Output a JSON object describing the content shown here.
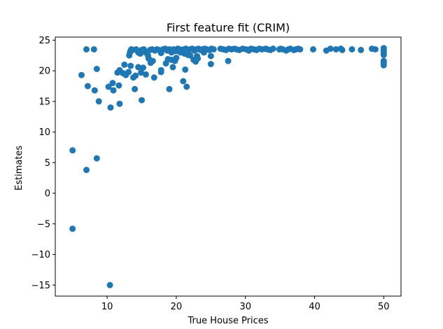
{
  "chart_data": {
    "type": "scatter",
    "title": "First feature fit (CRIM)",
    "xlabel": "True House Prices",
    "ylabel": "Estimates",
    "xlim": [
      2.5,
      52.5
    ],
    "ylim": [
      -16.8,
      25.5
    ],
    "xticks": [
      10,
      20,
      30,
      40,
      50
    ],
    "yticks": [
      -15,
      -10,
      -5,
      0,
      5,
      10,
      15,
      20,
      25
    ],
    "grid": false,
    "marker_color": "#1f77b4",
    "series": [
      {
        "name": "estimates",
        "points": [
          [
            5.0,
            7.0
          ],
          [
            5.0,
            -5.8
          ],
          [
            7.0,
            3.8
          ],
          [
            8.5,
            5.7
          ],
          [
            10.4,
            -15.0
          ],
          [
            6.3,
            19.3
          ],
          [
            7.2,
            17.5
          ],
          [
            8.2,
            16.8
          ],
          [
            8.8,
            15.0
          ],
          [
            8.5,
            20.3
          ],
          [
            7.0,
            23.5
          ],
          [
            8.1,
            23.5
          ],
          [
            10.2,
            17.4
          ],
          [
            10.5,
            14.0
          ],
          [
            10.8,
            18.0
          ],
          [
            10.9,
            16.8
          ],
          [
            11.8,
            14.6
          ],
          [
            11.7,
            17.6
          ],
          [
            11.5,
            19.7
          ],
          [
            11.8,
            20.1
          ],
          [
            12.3,
            19.6
          ],
          [
            12.5,
            21.0
          ],
          [
            12.7,
            19.3
          ],
          [
            13.1,
            19.8
          ],
          [
            13.4,
            20.8
          ],
          [
            13.8,
            18.9
          ],
          [
            14.0,
            17.0
          ],
          [
            14.1,
            19.2
          ],
          [
            14.5,
            20.6
          ],
          [
            14.9,
            19.7
          ],
          [
            15.0,
            15.2
          ],
          [
            15.2,
            20.5
          ],
          [
            15.6,
            19.4
          ],
          [
            16.0,
            22.0
          ],
          [
            16.3,
            21.3
          ],
          [
            16.6,
            21.6
          ],
          [
            16.8,
            18.9
          ],
          [
            17.8,
            19.8
          ],
          [
            17.8,
            20.1
          ],
          [
            18.5,
            21.2
          ],
          [
            18.8,
            21.9
          ],
          [
            19.0,
            17.0
          ],
          [
            19.3,
            21.8
          ],
          [
            19.5,
            20.6
          ],
          [
            19.8,
            21.6
          ],
          [
            20.0,
            22.1
          ],
          [
            20.6,
            23.0
          ],
          [
            21.0,
            18.3
          ],
          [
            21.3,
            20.2
          ],
          [
            21.5,
            17.4
          ],
          [
            21.2,
            22.8
          ],
          [
            21.7,
            22.6
          ],
          [
            22.0,
            22.5
          ],
          [
            22.5,
            21.8
          ],
          [
            22.8,
            21.5
          ],
          [
            23.0,
            22.4
          ],
          [
            23.1,
            22.0
          ],
          [
            24.0,
            23.0
          ],
          [
            25.0,
            22.4
          ],
          [
            25.0,
            21.1
          ],
          [
            27.5,
            21.6
          ],
          [
            13.2,
            22.5
          ],
          [
            13.3,
            23.0
          ],
          [
            13.4,
            23.3
          ],
          [
            13.5,
            23.5
          ],
          [
            13.7,
            23.4
          ],
          [
            14.2,
            23.5
          ],
          [
            14.5,
            23.0
          ],
          [
            14.8,
            22.8
          ],
          [
            15.0,
            23.4
          ],
          [
            15.3,
            23.5
          ],
          [
            15.6,
            23.0
          ],
          [
            15.9,
            22.5
          ],
          [
            16.2,
            23.4
          ],
          [
            16.5,
            23.5
          ],
          [
            16.9,
            23.3
          ],
          [
            17.2,
            23.5
          ],
          [
            17.5,
            23.4
          ],
          [
            17.8,
            22.9
          ],
          [
            18.1,
            23.5
          ],
          [
            18.4,
            23.6
          ],
          [
            18.7,
            23.3
          ],
          [
            19.0,
            23.5
          ],
          [
            19.3,
            23.0
          ],
          [
            19.6,
            23.5
          ],
          [
            19.9,
            23.2
          ],
          [
            20.2,
            23.6
          ],
          [
            20.5,
            23.5
          ],
          [
            20.8,
            23.3
          ],
          [
            21.1,
            23.5
          ],
          [
            21.4,
            23.6
          ],
          [
            21.7,
            23.4
          ],
          [
            22.0,
            23.5
          ],
          [
            22.3,
            23.6
          ],
          [
            22.6,
            23.3
          ],
          [
            22.9,
            23.5
          ],
          [
            23.2,
            23.6
          ],
          [
            23.5,
            23.4
          ],
          [
            23.8,
            23.5
          ],
          [
            24.1,
            23.6
          ],
          [
            24.4,
            23.5
          ],
          [
            24.8,
            23.4
          ],
          [
            25.1,
            23.6
          ],
          [
            25.4,
            23.5
          ],
          [
            26.4,
            23.6
          ],
          [
            26.8,
            23.5
          ],
          [
            27.2,
            23.4
          ],
          [
            27.6,
            23.6
          ],
          [
            28.0,
            23.5
          ],
          [
            28.4,
            23.6
          ],
          [
            28.7,
            23.5
          ],
          [
            29.1,
            23.4
          ],
          [
            29.6,
            23.6
          ],
          [
            30.1,
            23.5
          ],
          [
            30.5,
            23.3
          ],
          [
            30.8,
            23.6
          ],
          [
            31.2,
            23.5
          ],
          [
            31.6,
            23.4
          ],
          [
            32.0,
            23.6
          ],
          [
            32.4,
            23.5
          ],
          [
            32.9,
            23.6
          ],
          [
            33.2,
            23.5
          ],
          [
            33.6,
            23.4
          ],
          [
            34.0,
            23.6
          ],
          [
            34.9,
            23.5
          ],
          [
            35.1,
            23.6
          ],
          [
            35.4,
            23.5
          ],
          [
            35.9,
            23.3
          ],
          [
            36.2,
            23.5
          ],
          [
            36.5,
            23.6
          ],
          [
            37.0,
            23.4
          ],
          [
            37.3,
            23.5
          ],
          [
            37.6,
            23.6
          ],
          [
            37.9,
            23.5
          ],
          [
            39.8,
            23.5
          ],
          [
            41.7,
            23.3
          ],
          [
            42.3,
            23.6
          ],
          [
            43.1,
            23.5
          ],
          [
            43.8,
            23.6
          ],
          [
            44.0,
            23.4
          ],
          [
            45.4,
            23.5
          ],
          [
            46.7,
            23.4
          ],
          [
            48.3,
            23.6
          ],
          [
            48.8,
            23.5
          ],
          [
            50.0,
            23.7
          ],
          [
            50.0,
            23.3
          ],
          [
            50.0,
            23.0
          ],
          [
            50.0,
            22.6
          ],
          [
            50.0,
            21.6
          ],
          [
            50.0,
            21.3
          ],
          [
            50.0,
            20.9
          ]
        ]
      }
    ]
  }
}
